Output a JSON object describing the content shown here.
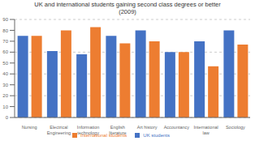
{
  "chart_data": {
    "type": "bar",
    "title": "UK and international students gaining second class degrees or better\n(2009)",
    "categories": [
      "Nursing",
      "Electrical\nEngineering",
      "Information\ntechnology",
      "English\nliterature",
      "Art history",
      "Accountancy",
      "International\nlaw",
      "Sociology"
    ],
    "series": [
      {
        "name": "UK students",
        "color": "#4472C4",
        "values": [
          75,
          61,
          58,
          75,
          80,
          60,
          70,
          80
        ]
      },
      {
        "name": "International students",
        "color": "#ED7D31",
        "values": [
          75,
          80,
          83,
          68,
          70,
          60,
          47,
          67
        ]
      }
    ],
    "ylim": [
      0,
      90
    ],
    "yticks": [
      0,
      10,
      20,
      30,
      40,
      50,
      60,
      70,
      80,
      90
    ],
    "grid": true,
    "legend": "bottom"
  }
}
